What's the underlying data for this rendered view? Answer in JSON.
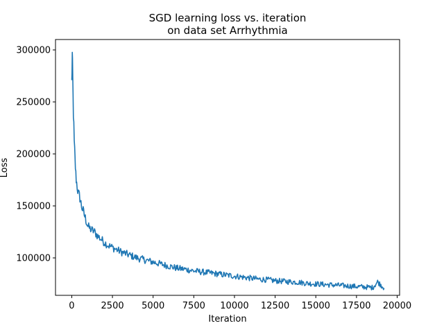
{
  "chart_data": {
    "type": "line",
    "title_lines": [
      "SGD learning loss vs. iteration",
      "on data set Arrhythmia"
    ],
    "xlabel": "Iteration",
    "ylabel": "Loss",
    "xlim": [
      -1000,
      20150
    ],
    "ylim": [
      64000,
      310000
    ],
    "xticks": [
      0,
      2500,
      5000,
      7500,
      10000,
      12500,
      15000,
      17500,
      20000
    ],
    "xtick_labels": [
      "0",
      "2500",
      "5000",
      "7500",
      "10000",
      "12500",
      "15000",
      "17500",
      "20000"
    ],
    "yticks": [
      100000,
      150000,
      200000,
      250000,
      300000
    ],
    "ytick_labels": [
      "100000",
      "150000",
      "200000",
      "250000",
      "300000"
    ],
    "grid": false,
    "series": [
      {
        "color": "#1f77b4",
        "x": [
          0,
          30,
          60,
          100,
          150,
          200,
          250,
          300,
          400,
          500,
          600,
          700,
          800,
          900,
          1000,
          1200,
          1400,
          1600,
          1800,
          2000,
          2250,
          2500,
          2750,
          3000,
          3500,
          4000,
          4500,
          5000,
          5500,
          6000,
          6500,
          7000,
          7500,
          8000,
          8500,
          9000,
          9500,
          10000,
          10500,
          11000,
          11500,
          12000,
          12500,
          13000,
          13500,
          14000,
          14500,
          15000,
          15500,
          16000,
          16500,
          17000,
          17500,
          18000,
          18500,
          18800,
          19000,
          19200
        ],
        "y": [
          268000,
          295000,
          270000,
          240000,
          210000,
          195000,
          180000,
          172000,
          162000,
          158000,
          150000,
          145000,
          140000,
          135000,
          130000,
          127000,
          125000,
          121000,
          118000,
          115000,
          112000,
          110000,
          108000,
          106000,
          103000,
          100000,
          98000,
          96000,
          94000,
          92000,
          90000,
          89000,
          87500,
          86500,
          85500,
          84500,
          83500,
          82500,
          81500,
          80500,
          79500,
          79000,
          78000,
          77500,
          77000,
          76500,
          75500,
          75000,
          74500,
          74000,
          73500,
          73000,
          72500,
          72000,
          71500,
          77000,
          74000,
          71000
        ]
      }
    ]
  }
}
